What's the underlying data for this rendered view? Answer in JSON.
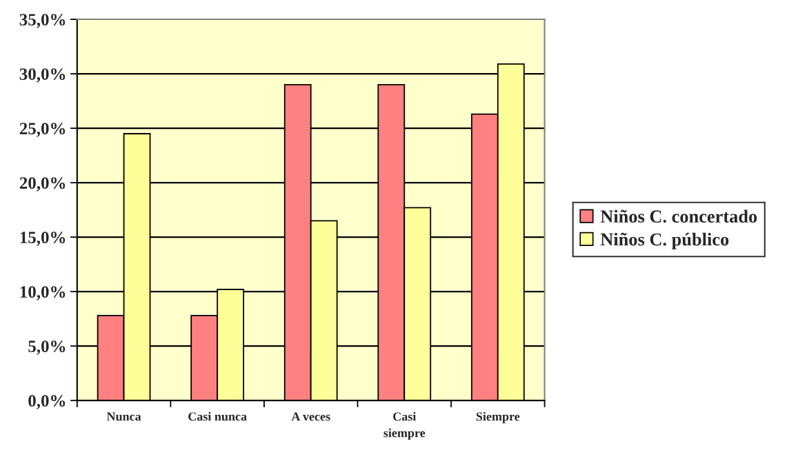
{
  "chart_data": {
    "type": "bar",
    "categories": [
      "Nunca",
      "Casi nunca",
      "A veces",
      "Casi\nsiempre",
      "Siempre"
    ],
    "series": [
      {
        "name": "Niños C. concertado",
        "color": "#ff8080",
        "values": [
          7.8,
          7.8,
          29.0,
          29.0,
          26.3
        ]
      },
      {
        "name": "Niños C. público",
        "color": "#ffff99",
        "values": [
          24.5,
          10.2,
          16.5,
          17.7,
          30.9
        ]
      }
    ],
    "ylim": [
      0,
      35
    ],
    "yticks": [
      {
        "value": 0,
        "label": "0,0%"
      },
      {
        "value": 5,
        "label": "5,0%"
      },
      {
        "value": 10,
        "label": "10,0%"
      },
      {
        "value": 15,
        "label": "15,0%"
      },
      {
        "value": 20,
        "label": "20,0%"
      },
      {
        "value": 25,
        "label": "25,0%"
      },
      {
        "value": 30,
        "label": "30,0%"
      },
      {
        "value": 35,
        "label": "35,0%"
      }
    ],
    "grid": "y",
    "legend": "right"
  }
}
